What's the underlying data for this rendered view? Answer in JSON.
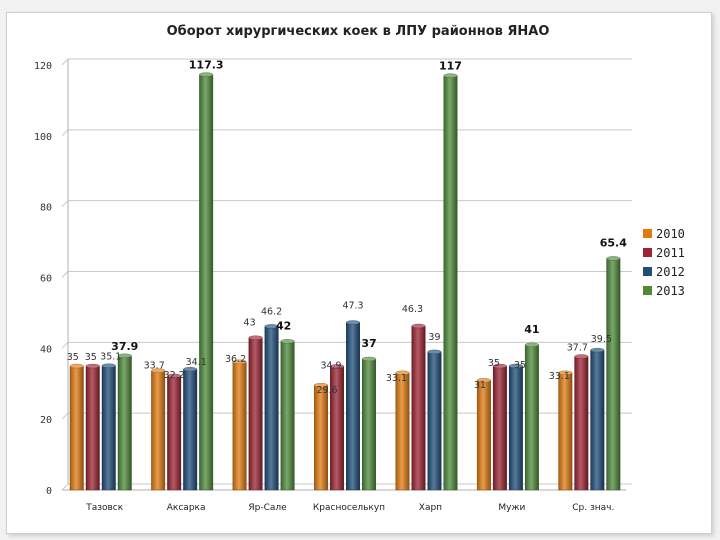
{
  "chart_data": {
    "type": "bar",
    "title": "Оборот хирургических коек в ЛПУ районнов ЯНАО",
    "xlabel": "",
    "ylabel": "",
    "ylim": [
      0,
      120
    ],
    "yticks": [
      0,
      20,
      40,
      60,
      80,
      100,
      120
    ],
    "grid": true,
    "legend_position": "right",
    "categories": [
      "Тазовск",
      "Аксарка",
      "Яр-Сале",
      "Красноселькуп",
      "Харп",
      "Мужи",
      "Ср. знач."
    ],
    "series": [
      {
        "name": "2010",
        "color": "#e07b10",
        "values": [
          35,
          33.7,
          36.2,
          29.6,
          33.1,
          31,
          33.1
        ]
      },
      {
        "name": "2011",
        "color": "#9b2433",
        "values": [
          35,
          32.2,
          43,
          34.9,
          46.3,
          35,
          37.7
        ]
      },
      {
        "name": "2012",
        "color": "#1f4e79",
        "values": [
          35.1,
          34.1,
          46.2,
          47.3,
          39,
          35,
          39.5
        ]
      },
      {
        "name": "2013",
        "color": "#4e8a3a",
        "values": [
          37.9,
          117.3,
          42,
          37,
          117,
          41,
          65.4
        ]
      }
    ],
    "data_labels": [
      {
        "category": "Тазовск",
        "series": "2010",
        "text": "35"
      },
      {
        "category": "Тазовск",
        "series": "2011",
        "text": "35"
      },
      {
        "category": "Тазовск",
        "series": "2012",
        "text": "35.1"
      },
      {
        "category": "Тазовск",
        "series": "2013",
        "text": "37.9"
      },
      {
        "category": "Аксарка",
        "series": "2010",
        "text": "33.7"
      },
      {
        "category": "Аксарка",
        "series": "2011",
        "text": "32.2"
      },
      {
        "category": "Аксарка",
        "series": "2012",
        "text": "34.1"
      },
      {
        "category": "Аксарка",
        "series": "2013",
        "text": "117.3"
      },
      {
        "category": "Яр-Сале",
        "series": "2010",
        "text": "36.2"
      },
      {
        "category": "Яр-Сале",
        "series": "2011",
        "text": "43"
      },
      {
        "category": "Яр-Сале",
        "series": "2012",
        "text": "46.2"
      },
      {
        "category": "Яр-Сале",
        "series": "2013",
        "text": "42"
      },
      {
        "category": "Красноселькуп",
        "series": "2010",
        "text": "29.6"
      },
      {
        "category": "Красноселькуп",
        "series": "2011",
        "text": "34.9"
      },
      {
        "category": "Красноселькуп",
        "series": "2012",
        "text": "47.3"
      },
      {
        "category": "Красноселькуп",
        "series": "2013",
        "text": "37"
      },
      {
        "category": "Харп",
        "series": "2010",
        "text": "33.1"
      },
      {
        "category": "Харп",
        "series": "2011",
        "text": "46.3"
      },
      {
        "category": "Харп",
        "series": "2012",
        "text": "39"
      },
      {
        "category": "Харп",
        "series": "2013",
        "text": "117"
      },
      {
        "category": "Мужи",
        "series": "2010",
        "text": "31"
      },
      {
        "category": "Мужи",
        "series": "2011",
        "text": "35"
      },
      {
        "category": "Мужи",
        "series": "2012",
        "text": "35"
      },
      {
        "category": "Мужи",
        "series": "2013",
        "text": "41"
      },
      {
        "category": "Ср. знач.",
        "series": "2010",
        "text": "33.1"
      },
      {
        "category": "Ср. знач.",
        "series": "2011",
        "text": "37.7"
      },
      {
        "category": "Ср. знач.",
        "series": "2012",
        "text": "39.5"
      },
      {
        "category": "Ср. знач.",
        "series": "2013",
        "text": "65.4"
      }
    ]
  }
}
